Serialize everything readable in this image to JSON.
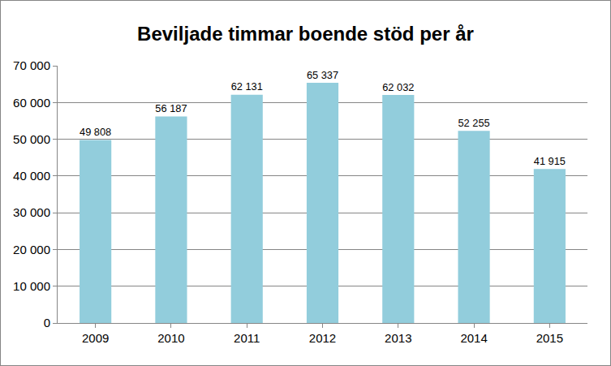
{
  "chart_data": {
    "type": "bar",
    "title": "Beviljade timmar boende stöd per år",
    "categories": [
      "2009",
      "2010",
      "2011",
      "2012",
      "2013",
      "2014",
      "2015"
    ],
    "values": [
      49808,
      56187,
      62131,
      65337,
      62032,
      52255,
      41915
    ],
    "value_labels": [
      "49 808",
      "56 187",
      "62 131",
      "65 337",
      "62 032",
      "52 255",
      "41 915"
    ],
    "data_labels": true,
    "color": "#92cddc",
    "ylim": [
      0,
      70000
    ],
    "yticks": [
      0,
      {
        "value": 10000,
        "label": "10 000"
      },
      {
        "value": 20000,
        "label": "20 000"
      },
      {
        "value": 30000,
        "label": "30 000"
      },
      {
        "value": 40000,
        "label": "40 000"
      },
      {
        "value": 50000,
        "label": "50 000"
      },
      {
        "value": 60000,
        "label": "60 000"
      },
      {
        "value": 70000,
        "label": "70 000"
      }
    ],
    "grid": true
  }
}
